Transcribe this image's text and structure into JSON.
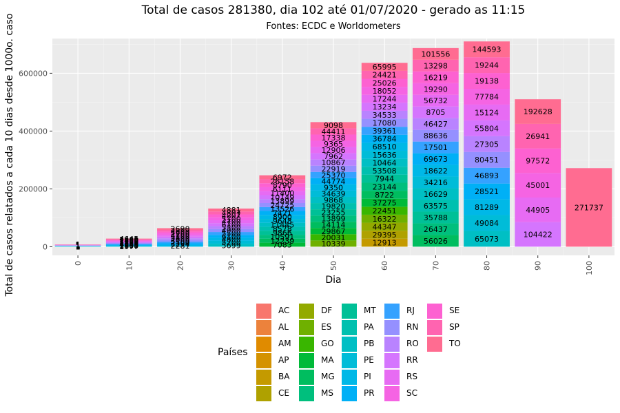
{
  "chart_data": {
    "type": "bar",
    "stacked": true,
    "title": "Total de casos 281380, dia 102 até 01/07/2020 - gerado as 11:15",
    "subtitle": "Fontes: ECDC e Worldometers",
    "xlabel": "Dia",
    "ylabel": "Total de casos relatados a cada 10 dias desde 1000o. caso",
    "x_ticks": [
      "0",
      "10",
      "20",
      "30",
      "40",
      "50",
      "60",
      "70",
      "80",
      "90",
      "100"
    ],
    "y_ticks": [
      "0",
      "200000",
      "400000",
      "600000"
    ],
    "ylim": [
      -30000,
      720000
    ],
    "legend_title": "Países",
    "legend_placement": "bottom",
    "grid": true,
    "states": [
      "AC",
      "AL",
      "AM",
      "AP",
      "BA",
      "CE",
      "DF",
      "ES",
      "GO",
      "MA",
      "MG",
      "MS",
      "MT",
      "PA",
      "PB",
      "PE",
      "PI",
      "PR",
      "RJ",
      "RN",
      "RO",
      "RR",
      "RS",
      "SC",
      "SE",
      "SP",
      "TO"
    ],
    "colors": [
      "#F8766D",
      "#EC823C",
      "#E08B00",
      "#D49200",
      "#C49A00",
      "#AFA100",
      "#93AA00",
      "#6FB000",
      "#39B600",
      "#00BA38",
      "#00BD5F",
      "#00BF7D",
      "#00C097",
      "#00C0AF",
      "#00BFC4",
      "#00BCD8",
      "#00B8E7",
      "#00B0F6",
      "#35A2FF",
      "#9590FF",
      "#B983FF",
      "#D575FE",
      "#E76BF3",
      "#F564E3",
      "#FD61D1",
      "#FF64B0",
      "#FF6C91"
    ],
    "bars": [
      {
        "day": 0,
        "total": 8000,
        "labels": [
          "1",
          "1",
          "1",
          "1",
          "1",
          "1",
          "1",
          "1",
          "1",
          "1",
          "1",
          "1",
          "1",
          "1"
        ]
      },
      {
        "day": 10,
        "total": 28000,
        "labels": [
          "1977",
          "2600",
          "1903",
          "4643",
          "1500",
          "1200",
          "1800",
          "2300",
          "1700",
          "1400",
          "2200",
          "4645"
        ]
      },
      {
        "day": 20,
        "total": 64000,
        "labels": [
          "2281",
          "3294",
          "2500",
          "3100",
          "2600",
          "3800",
          "4100",
          "2700",
          "3600",
          "2899",
          "2690"
        ]
      },
      {
        "day": 30,
        "total": 132000,
        "labels": [
          "5699",
          "5200",
          "4800",
          "6100",
          "5500",
          "4900",
          "5300",
          "6200",
          "4700",
          "5100",
          "4807",
          "4807",
          "4881"
        ]
      },
      {
        "day": 40,
        "total": 247000,
        "labels": [
          "7083",
          "12239",
          "10591",
          "9866",
          "8578",
          "11445",
          "9648",
          "8900",
          "7421",
          "13526",
          "24725",
          "13899",
          "10149",
          "11400",
          "6111",
          "8790",
          "26158",
          "6972"
        ]
      },
      {
        "day": 50,
        "total": 431000,
        "labels": [
          "10339",
          "20031",
          "29867",
          "14114",
          "13899",
          "23255",
          "19820",
          "9868",
          "34639",
          "9350",
          "44774",
          "25370",
          "22919",
          "10867",
          "7962",
          "12906",
          "9365",
          "17338",
          "44411",
          "9098"
        ]
      },
      {
        "day": 60,
        "total": 636000,
        "labels": [
          "12913",
          "29395",
          "44347",
          "16322",
          "22451",
          "37275",
          "8722",
          "23144",
          "7944",
          "53508",
          "10464",
          "15636",
          "68510",
          "36784",
          "39361",
          "17080",
          "34533",
          "13234",
          "17244",
          "18052",
          "25026",
          "24421",
          "65995"
        ]
      },
      {
        "day": 70,
        "total": 687000,
        "labels": [
          "56026",
          "26437",
          "35788",
          "63575",
          "16629",
          "34216",
          "18622",
          "69673",
          "17501",
          "88636",
          "46427",
          "8705",
          "56732",
          "19290",
          "16219",
          "13298",
          "101556"
        ]
      },
      {
        "day": 80,
        "total": 710000,
        "labels": [
          "65073",
          "49084",
          "81289",
          "28521",
          "46893",
          "80451",
          "27305",
          "55804",
          "15124",
          "77784",
          "19138",
          "19244",
          "144593"
        ]
      },
      {
        "day": 90,
        "total": 510000,
        "labels": [
          "104422",
          "44905",
          "45001",
          "97572",
          "26941",
          "192628"
        ]
      },
      {
        "day": 100,
        "total": 271737,
        "labels": [
          "271737"
        ]
      }
    ]
  }
}
